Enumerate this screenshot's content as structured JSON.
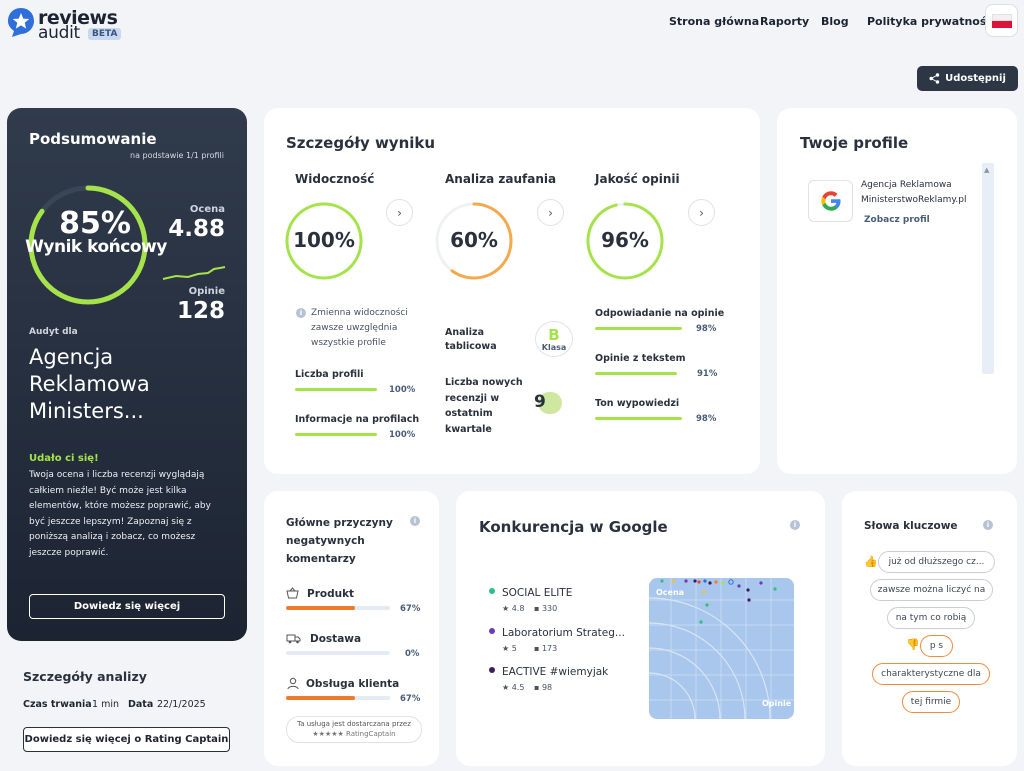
{
  "header": {
    "logo_line1": "reviews",
    "logo_line2": "audit",
    "badge": "BETA",
    "nav": [
      "Strona główna",
      "Raporty",
      "Blog",
      "Polityka prywatności"
    ],
    "share_label": "Udostępnij"
  },
  "summary": {
    "title": "Podsumowanie",
    "subtitle": "na podstawie 1/1 profili",
    "final_score": "85%",
    "final_label": "Wynik końcowy",
    "score_fraction": 0.85,
    "ocena_label": "Ocena",
    "ocena_value": "4.88",
    "opinie_label": "Opinie",
    "opinie_value": "128",
    "audit_for": "Audyt dla",
    "company": "Agencja Reklamowa Ministers...",
    "success_title": "Udało ci się!",
    "success_text": "Twoja ocena i liczba recenzji wyglądają całkiem nieźle! Być może jest kilka elementów, które możesz poprawić, aby być jeszcze lepszym! Zapoznaj się z poniższą analizą i zobacz, co możesz jeszcze poprawić.",
    "button": "Dowiedz się więcej"
  },
  "analysis": {
    "title": "Szczegóły analizy",
    "duration_label": "Czas trwania",
    "duration_value": "1 min",
    "date_label": "Data",
    "date_value": "22/1/2025",
    "button": "Dowiedz się więcej o Rating Captain"
  },
  "details": {
    "title": "Szczegóły wyniku",
    "visibility": {
      "title": "Widoczność",
      "value": "100%",
      "fraction": 1.0,
      "note": "Zmienna widoczności zawsze uwzględnia wszystkie profile",
      "items": [
        {
          "label": "Liczba profili",
          "pct": "100%",
          "fraction": 1.0
        },
        {
          "label": "Informacje na profilach",
          "pct": "100%",
          "fraction": 1.0
        }
      ]
    },
    "trust": {
      "title": "Analiza zaufania",
      "value": "60%",
      "fraction": 0.6,
      "table_label": "Analiza tablicowa",
      "grade": "B",
      "grade_label": "Klasa",
      "new_reviews_label": "Liczba nowych recenzji w ostatnim kwartale",
      "new_reviews_value": "9"
    },
    "quality": {
      "title": "Jakość opinii",
      "value": "96%",
      "fraction": 0.96,
      "items": [
        {
          "label": "Odpowiadanie na opinie",
          "pct": "98%",
          "fraction": 0.98
        },
        {
          "label": "Opinie z tekstem",
          "pct": "91%",
          "fraction": 0.91
        },
        {
          "label": "Ton wypowiedzi",
          "pct": "98%",
          "fraction": 0.98
        }
      ]
    }
  },
  "profiles": {
    "title": "Twoje profile",
    "name_line1": "Agencja Reklamowa",
    "name_line2": "MinisterstwoReklamy.pl",
    "link": "Zobacz profil"
  },
  "negative": {
    "title": "Główne przyczyny negatywnych komentarzy",
    "items": [
      {
        "label": "Produkt",
        "pct": "67%",
        "fraction": 0.67,
        "icon": "basket-icon"
      },
      {
        "label": "Dostawa",
        "pct": "0%",
        "fraction": 0.0,
        "icon": "truck-icon"
      },
      {
        "label": "Obsługa klienta",
        "pct": "67%",
        "fraction": 0.67,
        "icon": "user-icon"
      }
    ],
    "footer_line1": "Ta usługa jest dostarczana przez",
    "footer_line2": "★★★★★ RatingCaptain"
  },
  "competition": {
    "title": "Konkurencja w Google",
    "competitors": [
      {
        "name": "SOCIAL ELITE",
        "rating": "4.8",
        "reviews": "330",
        "color": "#2bbf8a"
      },
      {
        "name": "Laboratorium Strateg...",
        "rating": "5",
        "reviews": "173",
        "color": "#6a3bb8"
      },
      {
        "name": "EACTIVE #wiemyjak",
        "rating": "4.5",
        "reviews": "98",
        "color": "#3a1f5e"
      }
    ],
    "plot_label_top": "Ocena",
    "plot_label_bottom": "Opinie"
  },
  "keywords": {
    "title": "Słowa kluczowe",
    "positive": [
      "już od dłuższego cz...",
      "zawsze można liczyć na",
      "na tym co robią"
    ],
    "negative": [
      "p s",
      "charakterystyczne dla",
      "tej firmie"
    ]
  },
  "colors": {
    "accent_green": "#a6e34a",
    "accent_orange": "#f08a3c",
    "dark_panel": "#1c2432"
  }
}
